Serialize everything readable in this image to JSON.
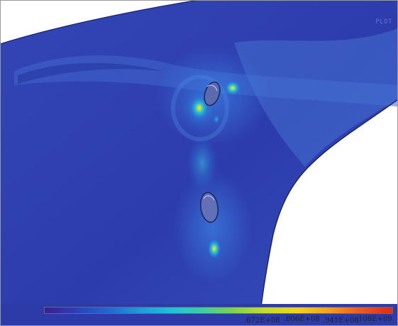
{
  "window": {
    "label": "PLOT"
  },
  "colors": {
    "background_blue": "#2f3fb2",
    "stress_low": "#2a3aa8",
    "stress_mid": "#1fb0e0",
    "stress_high": "#b8e040"
  },
  "legend": {
    "colors": [
      "#3a1f8a",
      "#2f3fb8",
      "#2266d0",
      "#1f9ad8",
      "#22c0d8",
      "#3ccf9e",
      "#7fd44a",
      "#c6dc2a",
      "#f0d41e",
      "#f4a01c",
      "#ee5a18",
      "#e02a14"
    ],
    "tick_labels": [
      {
        "text": ".672E+08"
      },
      {
        "text": ".806E+08"
      },
      {
        "text": ".941E+08"
      },
      {
        "text": ".108E+09"
      }
    ]
  }
}
